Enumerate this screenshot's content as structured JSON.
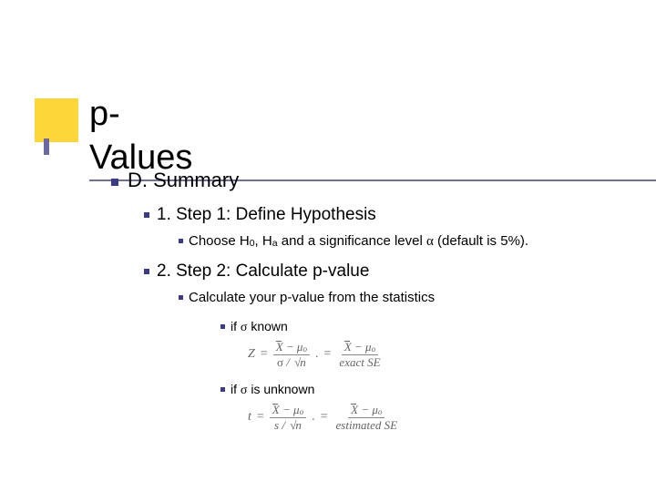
{
  "title": "p-Values",
  "section": {
    "label": "D.  Summary",
    "steps": [
      {
        "label": "1.  Step 1: Define Hypothesis",
        "detail_pre": "Choose H",
        "detail_sub0": "0",
        "detail_mid": ", H",
        "detail_suba": "a",
        "detail_post": " and a significance level ",
        "detail_alpha": "α",
        "detail_end": " (default is 5%)."
      },
      {
        "label": "2.  Step 2: Calculate p-value",
        "detail": "Calculate your p-value from the statistics",
        "case1_pre": "if ",
        "case1_sigma": "σ",
        "case1_post": " known",
        "case2_pre": "if ",
        "case2_sigma": "σ",
        "case2_post": " is unknown"
      }
    ]
  },
  "eq1": {
    "lhs": "Z",
    "eq": "=",
    "num1_a": "X",
    "num1_b": " − μ",
    "num1_sub": "o",
    "den1_a": "σ",
    "den1_b": " / ",
    "den1_c": "n",
    "dot": ".",
    "num2_a": "X",
    "num2_b": " − μ",
    "num2_sub": "o",
    "den2": "exact SE"
  },
  "eq2": {
    "lhs": "t",
    "eq": "=",
    "num1_a": "X",
    "num1_b": " − μ",
    "num1_sub": "o",
    "den1_a": "s",
    "den1_b": " / ",
    "den1_c": "n",
    "dot": ".",
    "num2_a": "X",
    "num2_b": " − μ",
    "num2_sub": "o",
    "den2": "estimated SE"
  },
  "colors": {
    "accent_yellow": "#fdd017",
    "accent_blue": "#6a6aa0",
    "bullet": "#3a3a8a",
    "text": "#000000",
    "eq_text": "#666666",
    "background": "#ffffff"
  }
}
